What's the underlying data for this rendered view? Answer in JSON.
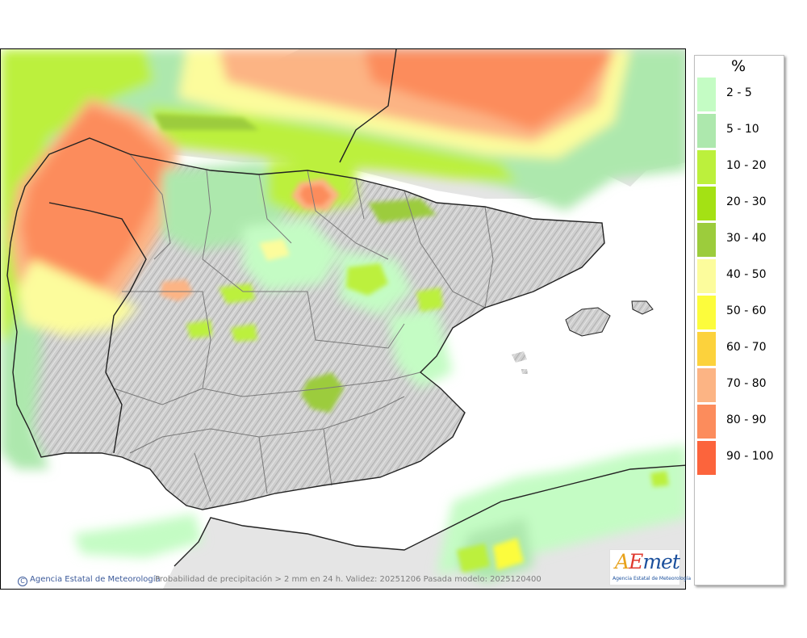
{
  "legend": {
    "title": "%",
    "items": [
      {
        "label": "2 - 5",
        "color": "#c4fcc4"
      },
      {
        "label": "5 - 10",
        "color": "#ade8ad"
      },
      {
        "label": "10 - 20",
        "color": "#bcf03c"
      },
      {
        "label": "20 - 30",
        "color": "#a4e114"
      },
      {
        "label": "30 - 40",
        "color": "#9ccc3c"
      },
      {
        "label": "40 - 50",
        "color": "#fcfc9c"
      },
      {
        "label": "50 - 60",
        "color": "#fcfc3c"
      },
      {
        "label": "60 - 70",
        "color": "#fcd23c"
      },
      {
        "label": "70 - 80",
        "color": "#fcb484"
      },
      {
        "label": "80 - 90",
        "color": "#fc8c5c"
      },
      {
        "label": "90 - 100",
        "color": "#fc643c"
      }
    ]
  },
  "footer": {
    "credit": "Agencia Estatal de Meteorología",
    "caption": "Probabilidad de precipitación > 2 mm en 24 h. Validez: 20251206 Pasada modelo: 2025120400"
  },
  "logo": {
    "text_a": "A",
    "text_e": "E",
    "text_rest": "met",
    "subtitle": "Agencia Estatal de Meteorología"
  }
}
